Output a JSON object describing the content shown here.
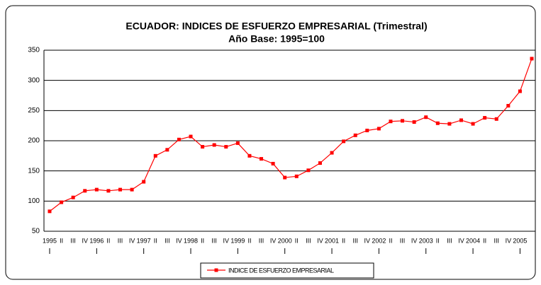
{
  "chart_data": {
    "type": "line",
    "title": "ECUADOR: INDICES DE ESFUERZO EMPRESARIAL (Trimestral)",
    "subtitle": "Año Base: 1995=100",
    "categories": [
      "1995",
      "II",
      "III",
      "IV",
      "1996",
      "II",
      "III",
      "IV",
      "1997",
      "II",
      "III",
      "IV",
      "1998",
      "II",
      "III",
      "IV",
      "1999",
      "II",
      "III",
      "IV",
      "2000",
      "II",
      "III",
      "IV",
      "2001",
      "II",
      "III",
      "IV",
      "2002",
      "II",
      "III",
      "IV",
      "2003",
      "II",
      "III",
      "IV",
      "2004",
      "II",
      "III",
      "IV",
      "2005",
      null
    ],
    "series": [
      {
        "name": "INDICE DE ESFUERZO EMPRESARIAL",
        "color": "#ff0000",
        "values": [
          83,
          98,
          106,
          117,
          119,
          117,
          119,
          119,
          132,
          175,
          185,
          202,
          207,
          190,
          193,
          190,
          196,
          175,
          170,
          162,
          139,
          141,
          151,
          163,
          180,
          199,
          209,
          217,
          220,
          232,
          233,
          231,
          239,
          229,
          228,
          234,
          228,
          238,
          236,
          258,
          282,
          336
        ]
      }
    ],
    "ylim": [
      50,
      350
    ],
    "yticks": [
      50,
      100,
      150,
      200,
      250,
      300,
      350
    ],
    "grid": true,
    "legend": "bottom"
  }
}
